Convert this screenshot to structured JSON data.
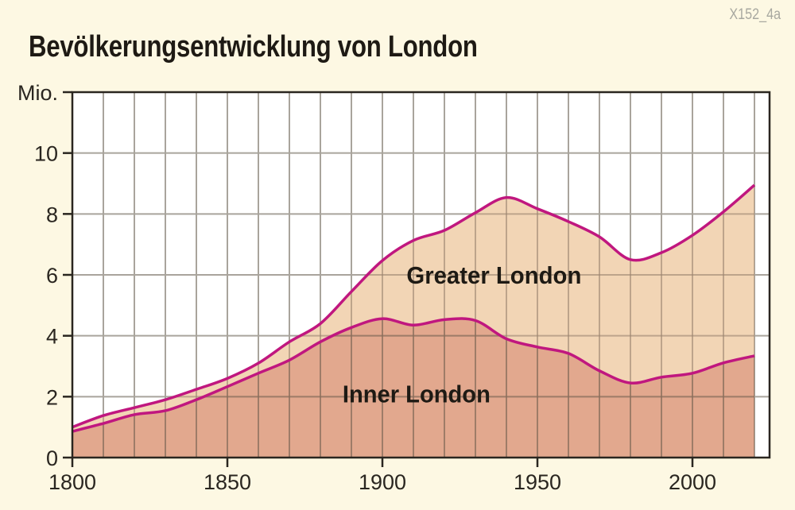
{
  "header": {
    "code": "X152_4a",
    "title": "Bevölkerungsentwicklung von London"
  },
  "colors": {
    "background": "#FDF8E3",
    "plot_background": "#FFFFFF",
    "grid": "#A9A49C",
    "grid_on_fill": "#9A8470",
    "greater_fill": "#F2D5B5",
    "inner_fill": "#E2A88E",
    "line": "#C0177F",
    "axis": "#2A2620"
  },
  "chart_data": {
    "type": "area",
    "title": "Bevölkerungsentwicklung von London",
    "xlabel": "",
    "ylabel": "Mio.",
    "xlim": [
      1800,
      2025
    ],
    "ylim": [
      0,
      12
    ],
    "x_ticks": [
      1800,
      1850,
      1900,
      1950,
      2000
    ],
    "y_ticks": [
      0,
      2,
      4,
      6,
      8,
      10
    ],
    "y_unit_label": "Mio.",
    "grid": true,
    "x_grid_step": 10,
    "y_grid_step": 2,
    "x": [
      1800,
      1810,
      1820,
      1830,
      1840,
      1850,
      1860,
      1870,
      1880,
      1890,
      1900,
      1910,
      1920,
      1930,
      1940,
      1950,
      1960,
      1970,
      1980,
      1990,
      2000,
      2010,
      2020
    ],
    "series": [
      {
        "name": "Greater London",
        "values": [
          1.0,
          1.38,
          1.64,
          1.9,
          2.24,
          2.6,
          3.1,
          3.8,
          4.4,
          5.45,
          6.47,
          7.13,
          7.46,
          8.04,
          8.54,
          8.17,
          7.75,
          7.25,
          6.5,
          6.73,
          7.3,
          8.07,
          8.95
        ]
      },
      {
        "name": "Inner London",
        "values": [
          0.86,
          1.12,
          1.41,
          1.54,
          1.9,
          2.33,
          2.77,
          3.2,
          3.8,
          4.27,
          4.56,
          4.35,
          4.53,
          4.5,
          3.9,
          3.63,
          3.42,
          2.85,
          2.45,
          2.64,
          2.77,
          3.11,
          3.34
        ]
      }
    ],
    "annotations": [
      {
        "text": "Greater London",
        "x": 1936,
        "y": 6.0
      },
      {
        "text": "Inner London",
        "x": 1911,
        "y": 2.1
      }
    ]
  }
}
